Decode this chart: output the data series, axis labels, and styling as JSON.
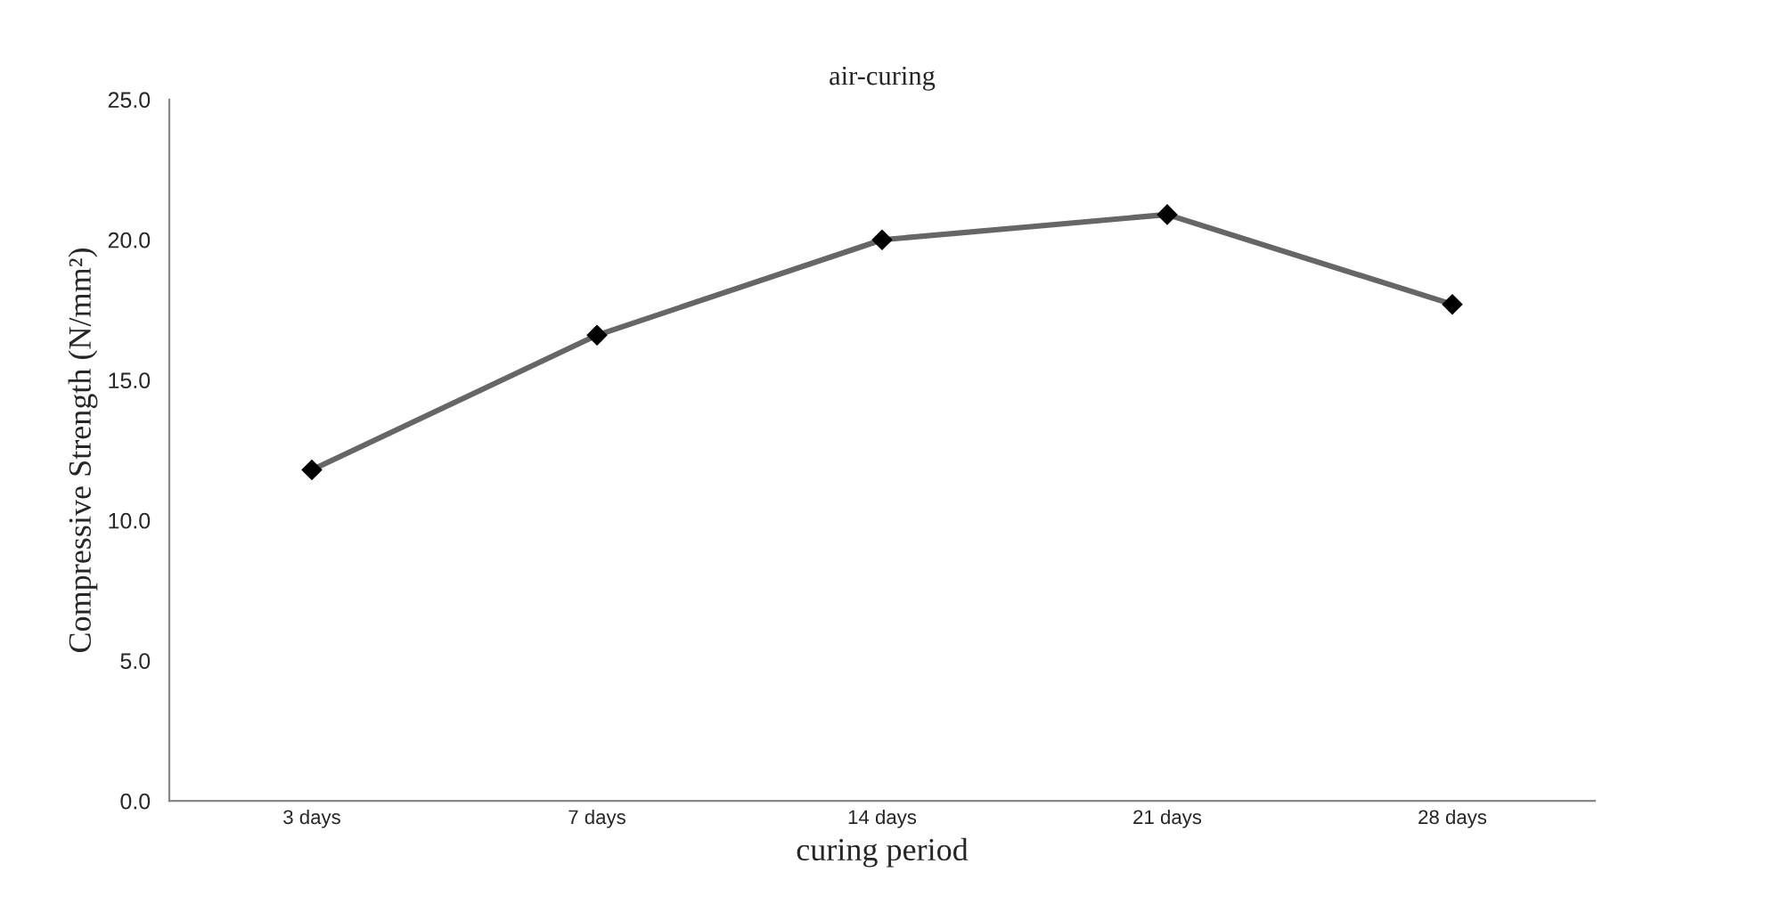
{
  "chart_data": {
    "type": "line",
    "title": "air-curing",
    "xlabel": "curing period",
    "ylabel": "Compressive Strength (N/mm²)",
    "categories": [
      "3 days",
      "7 days",
      "14 days",
      "21 days",
      "28 days"
    ],
    "series": [
      {
        "color": "#666666",
        "values": [
          11.8,
          16.6,
          20.0,
          20.9,
          17.7
        ]
      }
    ],
    "ylim": [
      0,
      25
    ],
    "yticks": [
      {
        "value": 0,
        "label": "0.0"
      },
      {
        "value": 5,
        "label": "5.0"
      },
      {
        "value": 10,
        "label": "10.0"
      },
      {
        "value": 15,
        "label": "15.0"
      },
      {
        "value": 20,
        "label": "20.0"
      },
      {
        "value": 25,
        "label": "25.0"
      }
    ],
    "marker": "diamond",
    "line_style": "solid",
    "grid": false,
    "legend": false
  }
}
